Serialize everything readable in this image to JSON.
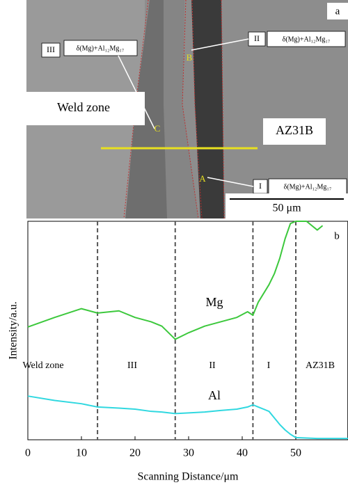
{
  "micrograph": {
    "panel_label": "a",
    "phase": "δ(Mg)+Al₁₂Mg₁₇",
    "zone_labels": [
      "III",
      "II",
      "I"
    ],
    "points": [
      "B",
      "C",
      "A"
    ],
    "weld_zone": "Weld zone",
    "base_metal": "AZ31B",
    "scale_bar": "50 μm"
  },
  "chart_data": {
    "type": "line",
    "panel_label": "b",
    "x_label": "Scanning Distance/μm",
    "y_label": "Intensity/a.u.",
    "x": [
      0,
      5,
      10,
      13,
      17,
      20,
      23,
      25,
      27.5,
      30,
      33,
      36,
      39,
      41,
      42,
      43,
      45,
      46,
      47,
      48,
      49,
      50,
      52,
      54,
      55,
      60
    ],
    "series": [
      {
        "name": "Mg",
        "color": "#3cc83c",
        "values": [
          51.6,
          56,
          60,
          58,
          59,
          56,
          54,
          52,
          46,
          49,
          52,
          54,
          56,
          58.6,
          57,
          63,
          71,
          76,
          83,
          92,
          99,
          100,
          100,
          96,
          98,
          null
        ]
      },
      {
        "name": "Al",
        "color": "#30d8e0",
        "values": [
          20,
          18,
          16.5,
          15,
          14.5,
          14,
          13,
          12.7,
          12,
          12.3,
          12.7,
          13.4,
          14,
          15,
          16,
          15,
          13,
          10,
          7,
          4.5,
          2.5,
          1,
          0.8,
          0.6,
          0.6,
          0.6
        ]
      }
    ],
    "vlines": [
      13,
      27.5,
      42,
      50
    ],
    "regions": [
      "Weld zone",
      "III",
      "II",
      "I",
      "AZ31B"
    ],
    "xlim": [
      0,
      59.7
    ],
    "xticks": [
      0,
      10,
      20,
      30,
      40,
      50
    ],
    "ylim": [
      0,
      100
    ]
  }
}
